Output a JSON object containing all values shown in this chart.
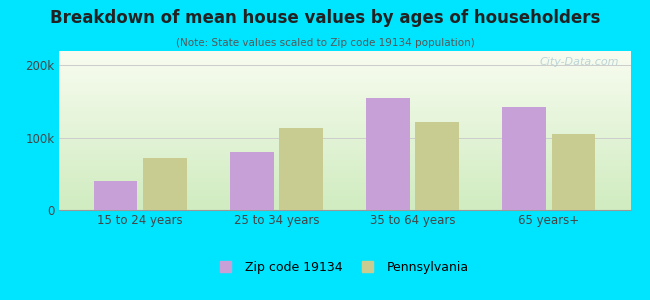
{
  "title": "Breakdown of mean house values by ages of householders",
  "subtitle": "(Note: State values scaled to Zip code 19134 population)",
  "categories": [
    "15 to 24 years",
    "25 to 34 years",
    "35 to 64 years",
    "65 years+"
  ],
  "zip_values": [
    40000,
    80000,
    155000,
    142000
  ],
  "pa_values": [
    72000,
    113000,
    122000,
    105000
  ],
  "zip_color": "#c8a0d8",
  "pa_color": "#c8cc90",
  "background_outer": "#00e5ff",
  "yticks": [
    0,
    100000,
    200000
  ],
  "ytick_labels": [
    "0",
    "100k",
    "200k"
  ],
  "ylim": [
    0,
    220000
  ],
  "legend_zip": "Zip code 19134",
  "legend_pa": "Pennsylvania",
  "watermark": "City-Data.com",
  "bar_width": 0.32
}
